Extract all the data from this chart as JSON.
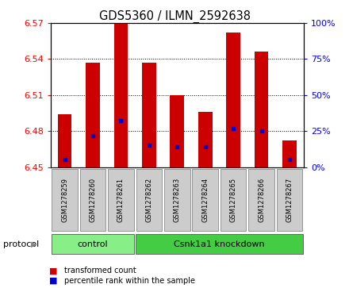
{
  "title": "GDS5360 / ILMN_2592638",
  "samples": [
    "GSM1278259",
    "GSM1278260",
    "GSM1278261",
    "GSM1278262",
    "GSM1278263",
    "GSM1278264",
    "GSM1278265",
    "GSM1278266",
    "GSM1278267"
  ],
  "transformed_count": [
    6.494,
    6.537,
    6.572,
    6.537,
    6.51,
    6.496,
    6.562,
    6.546,
    6.472
  ],
  "percentile_rank": [
    5,
    22,
    32,
    15,
    14,
    14,
    27,
    25,
    5
  ],
  "ylim": [
    6.45,
    6.57
  ],
  "yticks": [
    6.45,
    6.48,
    6.51,
    6.54,
    6.57
  ],
  "right_yticks": [
    0,
    25,
    50,
    75,
    100
  ],
  "right_ylim": [
    0,
    100
  ],
  "bar_color": "#cc0000",
  "dot_color": "#0000cc",
  "protocol_groups": [
    {
      "label": "control",
      "start": 0,
      "end": 3,
      "color": "#88ee88"
    },
    {
      "label": "Csnk1a1 knockdown",
      "start": 3,
      "end": 9,
      "color": "#44cc44"
    }
  ],
  "protocol_label": "protocol",
  "legend_items": [
    {
      "label": "transformed count",
      "color": "#cc0000"
    },
    {
      "label": "percentile rank within the sample",
      "color": "#0000cc"
    }
  ],
  "bar_width": 0.5,
  "sample_box_color": "#cccccc",
  "sample_box_edge": "#888888"
}
